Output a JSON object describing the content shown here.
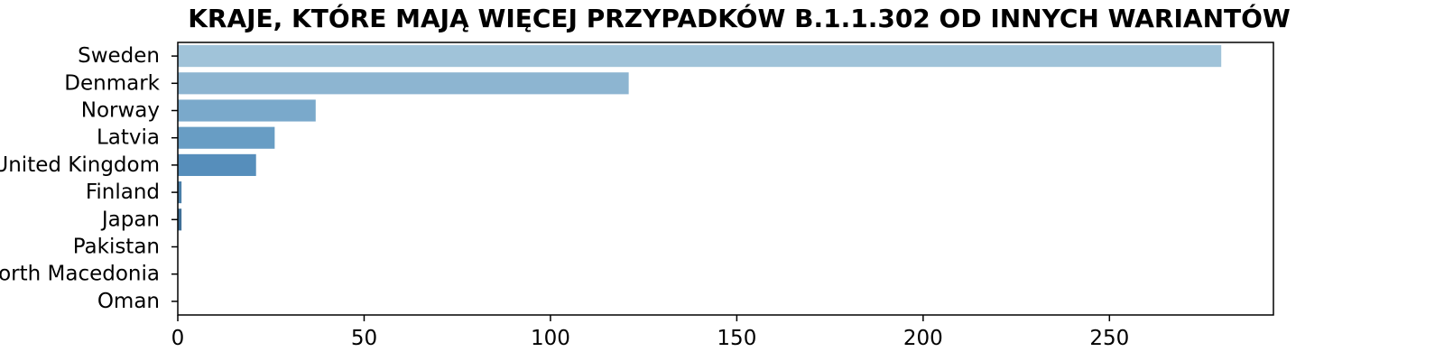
{
  "chart_data": {
    "type": "bar",
    "orientation": "horizontal",
    "title": "KRAJE, KTÓRE MAJĄ WIĘCEJ PRZYPADKÓW B.1.1.302 OD INNYCH WARIANTÓW",
    "xlabel": "",
    "ylabel": "",
    "categories": [
      "Sweden",
      "Denmark",
      "Norway",
      "Latvia",
      "United Kingdom",
      "Finland",
      "Japan",
      "Pakistan",
      "North Macedonia",
      "Oman"
    ],
    "values": [
      280,
      121,
      37,
      26,
      21,
      1,
      1,
      0,
      0,
      0
    ],
    "xlim": [
      0,
      294
    ],
    "xticks": [
      "0",
      "50",
      "100",
      "150",
      "200",
      "250"
    ],
    "grid": false,
    "colors": [
      "#a0c3d9",
      "#8db5d1",
      "#7aa9cb",
      "#689dc4",
      "#568ebb",
      "#4a7fa9",
      "#3f6f97",
      "#355f84",
      "#2c5072",
      "#234262"
    ]
  }
}
